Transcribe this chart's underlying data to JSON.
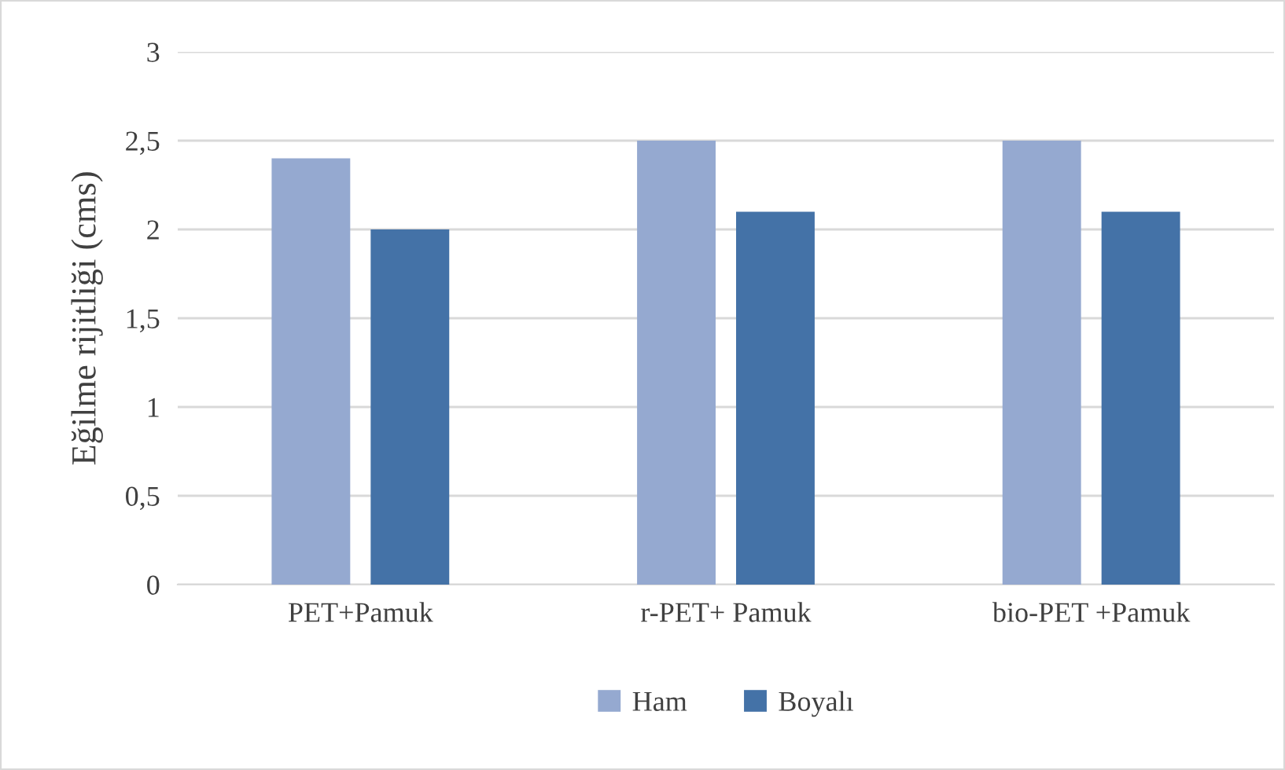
{
  "chart_data": {
    "type": "bar",
    "ylabel": "Eğilme rijitliği (cms)",
    "categories": [
      "PET+Pamuk",
      "r-PET+ Pamuk",
      "bio-PET +Pamuk"
    ],
    "series": [
      {
        "name": "Ham",
        "color": "#95a9d0",
        "values": [
          2.4,
          2.5,
          2.5
        ]
      },
      {
        "name": "Boyalı",
        "color": "#4472a7",
        "values": [
          2.0,
          2.1,
          2.1
        ]
      }
    ],
    "ylim": [
      0,
      3
    ],
    "yticks": [
      0,
      {
        "value": 0.5,
        "label": "0,5"
      },
      1,
      {
        "value": 1.5,
        "label": "1,5"
      },
      2,
      {
        "value": 2.5,
        "label": "2,5"
      },
      3
    ],
    "grid": "y",
    "legend": "bottom"
  }
}
